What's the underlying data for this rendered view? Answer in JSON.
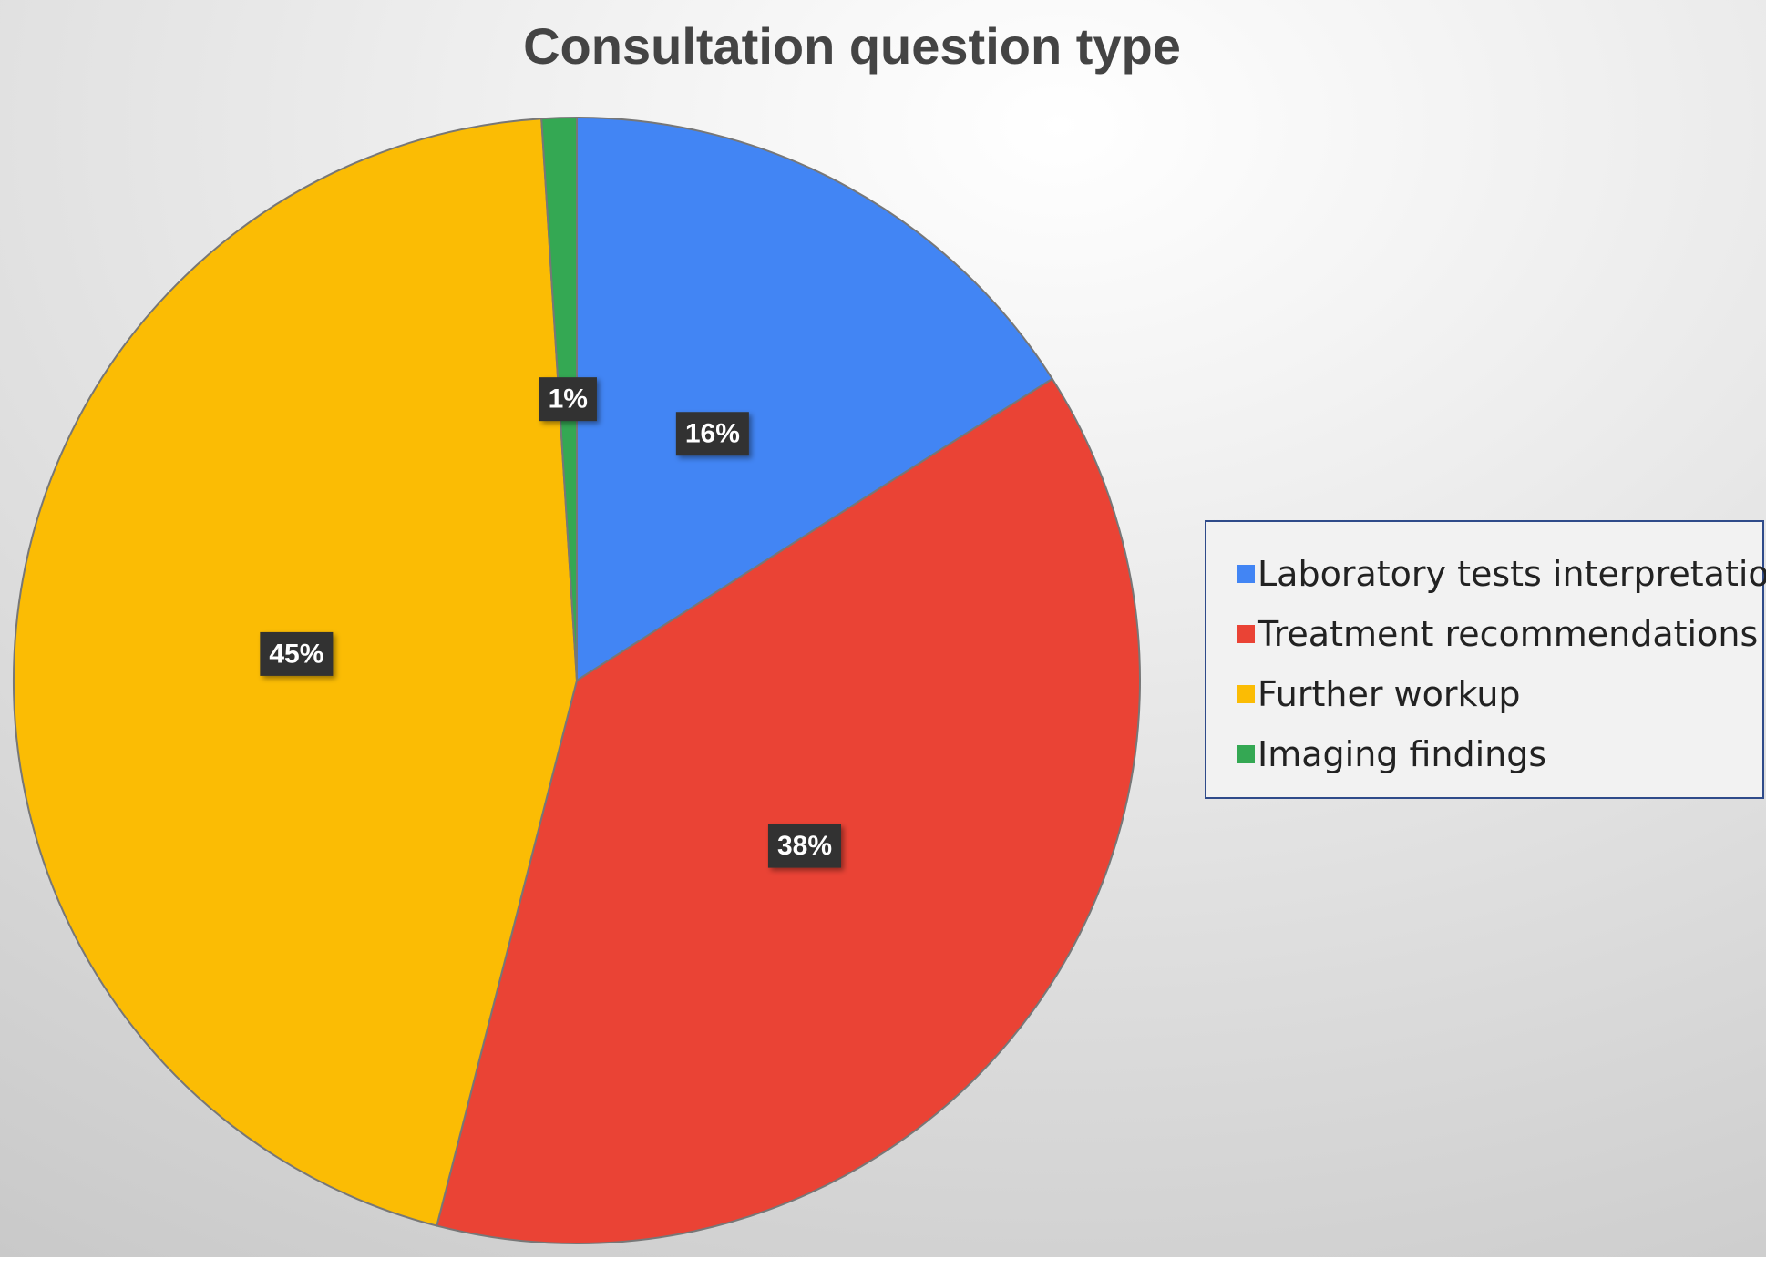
{
  "chart_data": {
    "type": "pie",
    "title": "Consultation question type",
    "categories": [
      "Laboratory tests interpretation",
      "Treatment recommendations",
      "Further workup",
      "Imaging findings"
    ],
    "values": [
      16,
      38,
      45,
      1
    ],
    "value_labels": [
      "16%",
      "38%",
      "45%",
      "1%"
    ],
    "colors": [
      "#4285f4",
      "#ea4335",
      "#fbbc04",
      "#34a853"
    ],
    "legend": "right"
  }
}
